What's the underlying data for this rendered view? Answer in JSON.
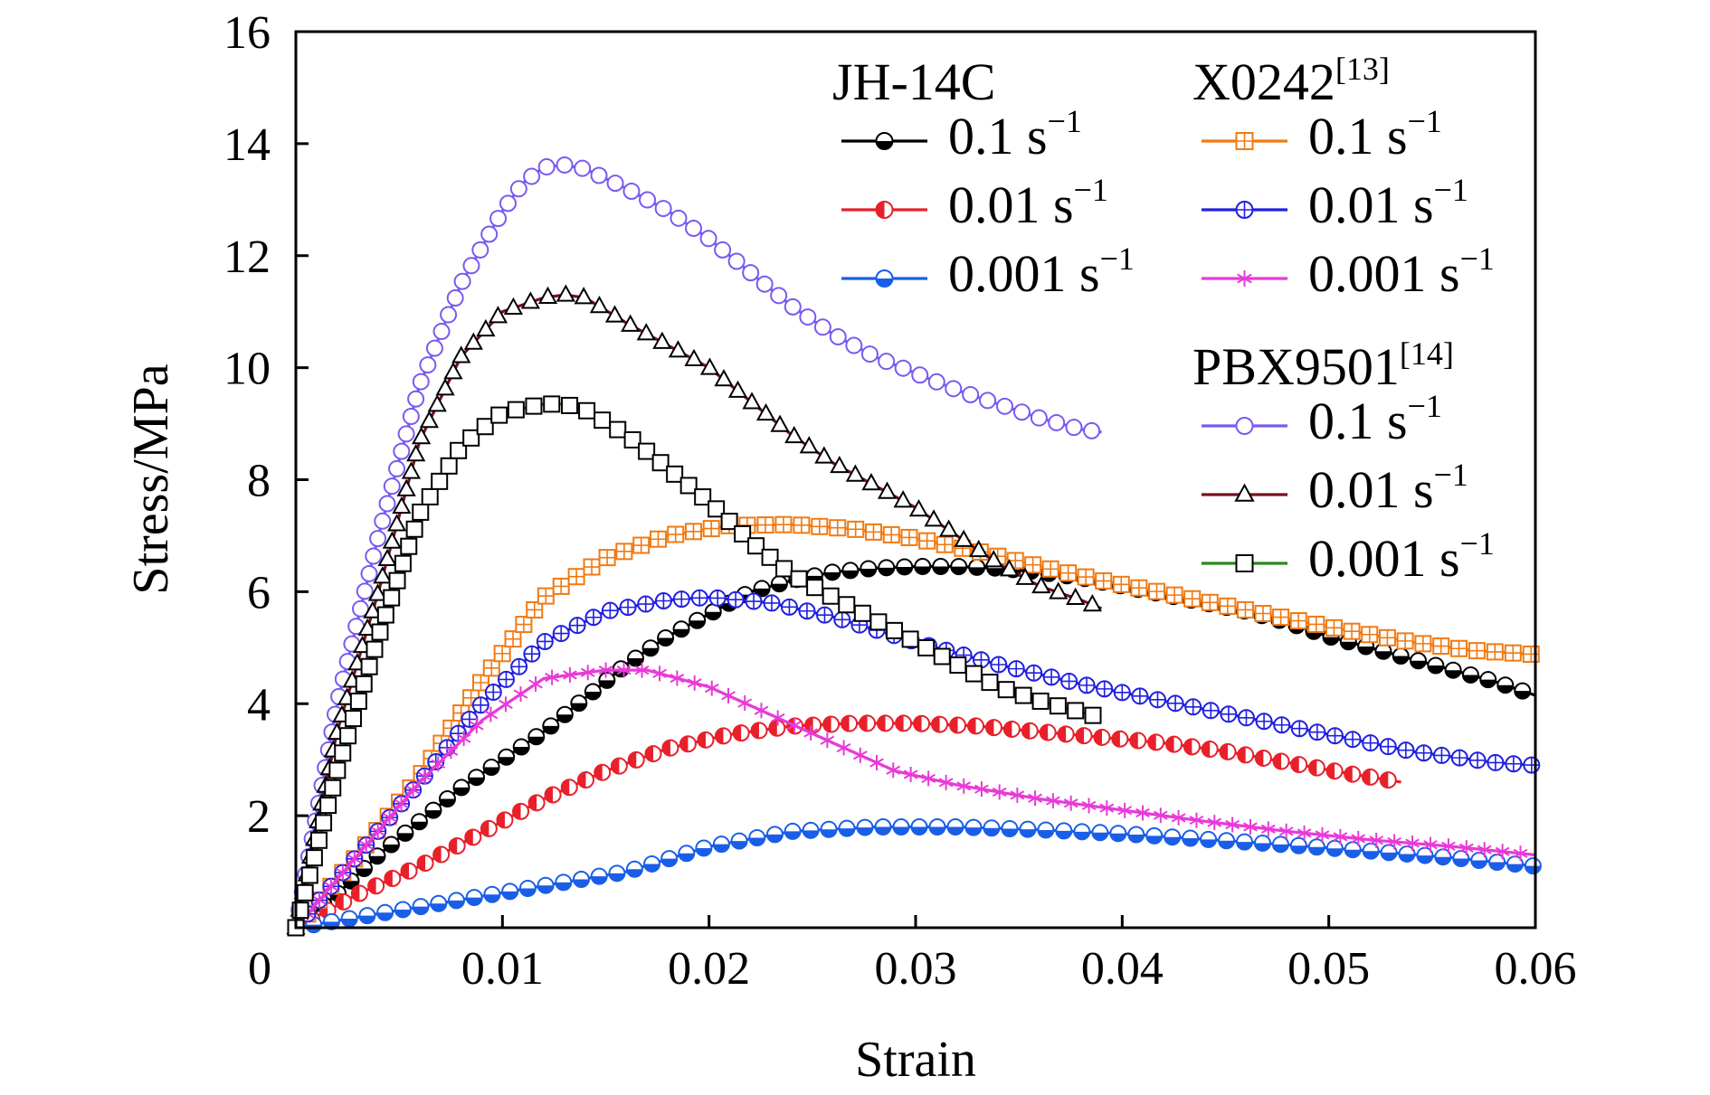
{
  "chart_data": {
    "type": "line",
    "xlabel": "Strain",
    "ylabel": "Stress/MPa",
    "xlim": [
      0,
      0.06
    ],
    "ylim": [
      0,
      16
    ],
    "x_ticks": [
      0,
      0.01,
      0.02,
      0.03,
      0.04,
      0.05,
      0.06
    ],
    "x_tick_labels": [
      "0",
      "0.01",
      "0.02",
      "0.03",
      "0.04",
      "0.05",
      "0.06"
    ],
    "y_ticks": [
      2,
      4,
      6,
      8,
      10,
      12,
      14,
      16
    ],
    "y_tick_labels": [
      "2",
      "4",
      "6",
      "8",
      "10",
      "12",
      "14",
      "16"
    ],
    "grid": false,
    "legend_placement": "top-right",
    "groups": [
      {
        "title": "JH-14C",
        "series": [
          {
            "name": "0.1 s⁻¹",
            "label": "0.1 s",
            "sup": "−1",
            "color": "#000000",
            "marker": "half-circle-bottom",
            "x": [
              0,
              0.002,
              0.004,
              0.006,
              0.008,
              0.01,
              0.012,
              0.014,
              0.016,
              0.018,
              0.02,
              0.022,
              0.024,
              0.026,
              0.028,
              0.03,
              0.032,
              0.034,
              0.036,
              0.038,
              0.04,
              0.042,
              0.044,
              0.046,
              0.048,
              0.05,
              0.052,
              0.054,
              0.056,
              0.058,
              0.06
            ],
            "y": [
              0,
              0.6,
              1.3,
              1.9,
              2.5,
              3.0,
              3.5,
              4.1,
              4.7,
              5.2,
              5.6,
              6.0,
              6.2,
              6.35,
              6.42,
              6.45,
              6.45,
              6.42,
              6.35,
              6.25,
              6.1,
              5.95,
              5.8,
              5.65,
              5.45,
              5.2,
              5.0,
              4.8,
              4.6,
              4.4,
              4.15
            ]
          },
          {
            "name": "0.01 s⁻¹",
            "label": "0.01 s",
            "sup": "−1",
            "color": "#e8202a",
            "marker": "half-circle-left",
            "x": [
              0,
              0.003,
              0.006,
              0.009,
              0.012,
              0.015,
              0.018,
              0.021,
              0.024,
              0.027,
              0.03,
              0.033,
              0.036,
              0.039,
              0.042,
              0.045,
              0.048,
              0.051,
              0.0535
            ],
            "y": [
              0,
              0.6,
              1.1,
              1.7,
              2.3,
              2.8,
              3.2,
              3.45,
              3.6,
              3.65,
              3.65,
              3.6,
              3.5,
              3.4,
              3.3,
              3.15,
              2.95,
              2.75,
              2.6
            ]
          },
          {
            "name": "0.001 s⁻¹",
            "label": "0.001 s",
            "sup": "−1",
            "color": "#1a5ee8",
            "marker": "half-circle-bottom",
            "x": [
              0,
              0.004,
              0.008,
              0.012,
              0.016,
              0.02,
              0.024,
              0.028,
              0.032,
              0.036,
              0.04,
              0.044,
              0.048,
              0.052,
              0.056,
              0.06
            ],
            "y": [
              0,
              0.25,
              0.5,
              0.75,
              1.0,
              1.45,
              1.72,
              1.8,
              1.8,
              1.75,
              1.68,
              1.58,
              1.48,
              1.37,
              1.25,
              1.1
            ]
          }
        ]
      },
      {
        "title": "X0242",
        "title_ref": "[13]",
        "series": [
          {
            "name": "0.1 s⁻¹",
            "label": "0.1 s",
            "sup": "−1",
            "color": "#f07a12",
            "marker": "square-plus",
            "x": [
              0,
              0.003,
              0.006,
              0.009,
              0.012,
              0.015,
              0.018,
              0.021,
              0.024,
              0.027,
              0.03,
              0.033,
              0.036,
              0.039,
              0.042,
              0.045,
              0.048,
              0.051,
              0.054,
              0.057,
              0.06
            ],
            "y": [
              0,
              1.3,
              2.7,
              4.4,
              5.9,
              6.6,
              7.0,
              7.18,
              7.2,
              7.12,
              6.95,
              6.72,
              6.45,
              6.2,
              5.98,
              5.75,
              5.52,
              5.3,
              5.1,
              4.95,
              4.88
            ]
          },
          {
            "name": "0.01 s⁻¹",
            "label": "0.01 s",
            "sup": "−1",
            "color": "#2020e0",
            "marker": "circle-plus",
            "x": [
              0,
              0.003,
              0.006,
              0.009,
              0.012,
              0.015,
              0.018,
              0.02,
              0.023,
              0.026,
              0.03,
              0.034,
              0.038,
              0.042,
              0.046,
              0.05,
              0.054,
              0.058,
              0.06
            ],
            "y": [
              0,
              1.3,
              2.6,
              4.0,
              5.1,
              5.65,
              5.85,
              5.9,
              5.8,
              5.55,
              5.1,
              4.7,
              4.35,
              4.05,
              3.75,
              3.45,
              3.15,
              2.95,
              2.9
            ]
          },
          {
            "name": "0.001 s⁻¹",
            "label": "0.001 s",
            "sup": "−1",
            "color": "#e83ad8",
            "marker": "asterisk",
            "x": [
              0,
              0.003,
              0.006,
              0.009,
              0.012,
              0.015,
              0.017,
              0.02,
              0.023,
              0.026,
              0.029,
              0.032,
              0.036,
              0.04,
              0.044,
              0.048,
              0.052,
              0.056,
              0.06
            ],
            "y": [
              0,
              1.3,
              2.6,
              3.7,
              4.45,
              4.6,
              4.6,
              4.3,
              3.8,
              3.3,
              2.8,
              2.55,
              2.3,
              2.1,
              1.9,
              1.72,
              1.57,
              1.45,
              1.3
            ]
          }
        ]
      },
      {
        "title": "PBX9501",
        "title_ref": "[14]",
        "series": [
          {
            "name": "0.1 s⁻¹",
            "label": "0.1 s",
            "sup": "−1",
            "color": "#7a5af0",
            "marker": "circle-open",
            "x": [
              0,
              0.002,
              0.004,
              0.006,
              0.008,
              0.01,
              0.011,
              0.012,
              0.013,
              0.014,
              0.016,
              0.018,
              0.02,
              0.022,
              0.024,
              0.026,
              0.028,
              0.03,
              0.032,
              0.034,
              0.036,
              0.038,
              0.039
            ],
            "y": [
              0,
              4.0,
              7.0,
              9.7,
              11.5,
              12.8,
              13.3,
              13.58,
              13.62,
              13.55,
              13.2,
              12.8,
              12.3,
              11.7,
              11.1,
              10.6,
              10.2,
              9.9,
              9.6,
              9.35,
              9.1,
              8.9,
              8.85
            ]
          },
          {
            "name": "0.01 s⁻¹",
            "label": "0.01 s",
            "sup": "−1",
            "color": "#7a1020",
            "marker": "triangle-open",
            "x": [
              0,
              0.002,
              0.004,
              0.006,
              0.008,
              0.01,
              0.012,
              0.013,
              0.014,
              0.016,
              0.018,
              0.02,
              0.022,
              0.024,
              0.026,
              0.028,
              0.03,
              0.032,
              0.034,
              0.036,
              0.038,
              0.039
            ],
            "y": [
              0,
              3.5,
              6.0,
              8.7,
              10.2,
              11.0,
              11.25,
              11.3,
              11.25,
              10.8,
              10.4,
              10.0,
              9.4,
              8.8,
              8.3,
              7.9,
              7.5,
              7.0,
              6.5,
              6.1,
              5.85,
              5.7
            ]
          },
          {
            "name": "0.001 s⁻¹",
            "label": "0.001 s",
            "sup": "−1",
            "color": "#2a8a1a",
            "marker": "square-open",
            "x": [
              0,
              0.002,
              0.004,
              0.006,
              0.008,
              0.01,
              0.012,
              0.013,
              0.014,
              0.016,
              0.018,
              0.02,
              0.022,
              0.024,
              0.026,
              0.028,
              0.03,
              0.032,
              0.034,
              0.036,
              0.038,
              0.039
            ],
            "y": [
              0,
              2.8,
              5.2,
              7.4,
              8.6,
              9.2,
              9.35,
              9.35,
              9.25,
              8.8,
              8.2,
              7.6,
              6.9,
              6.3,
              5.9,
              5.5,
              5.1,
              4.7,
              4.3,
              4.05,
              3.85,
              3.75
            ]
          }
        ]
      }
    ]
  }
}
